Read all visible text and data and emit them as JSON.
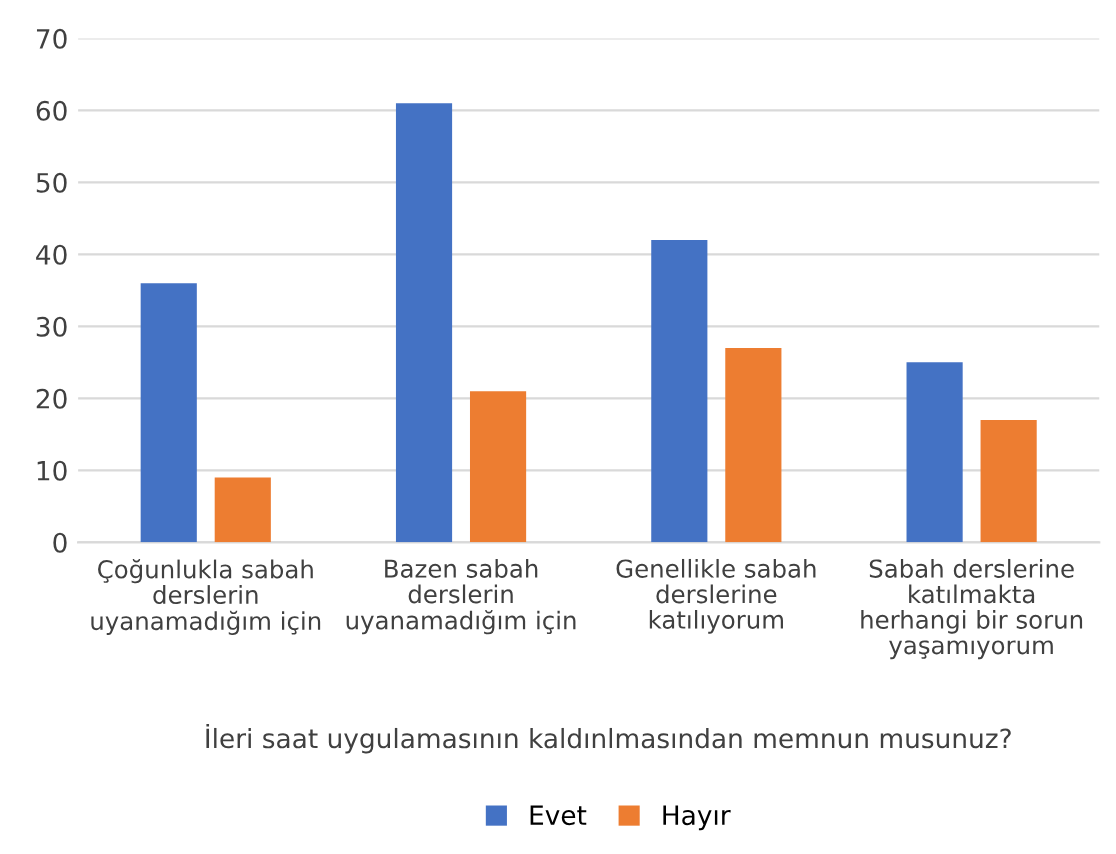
{
  "chart_data": {
    "type": "bar",
    "categories": [
      "Çoğunlukla sabah\nderslerin\nuyanamadığım için",
      "Bazen sabah\nderslerin\nuyanamadığım için",
      "Genellikle sabah\nderslerine\nkatılıyorum",
      "Sabah derslerine\nkatılmakta\nherhangi bir sorun\nyaşamıyorum"
    ],
    "series": [
      {
        "name": "Evet",
        "color": "#4472c4",
        "values": [
          36,
          61,
          42,
          25
        ]
      },
      {
        "name": "Hayır",
        "color": "#ed7d31",
        "values": [
          9,
          21,
          27,
          17
        ]
      }
    ],
    "xlabel": "İleri saat uygulamasının kaldınlmasından memnun musunuz?",
    "ylim": [
      0,
      70
    ],
    "yticks": [
      0,
      10,
      20,
      30,
      40,
      50,
      60,
      70
    ],
    "grid": "y",
    "legend": "bottom"
  }
}
